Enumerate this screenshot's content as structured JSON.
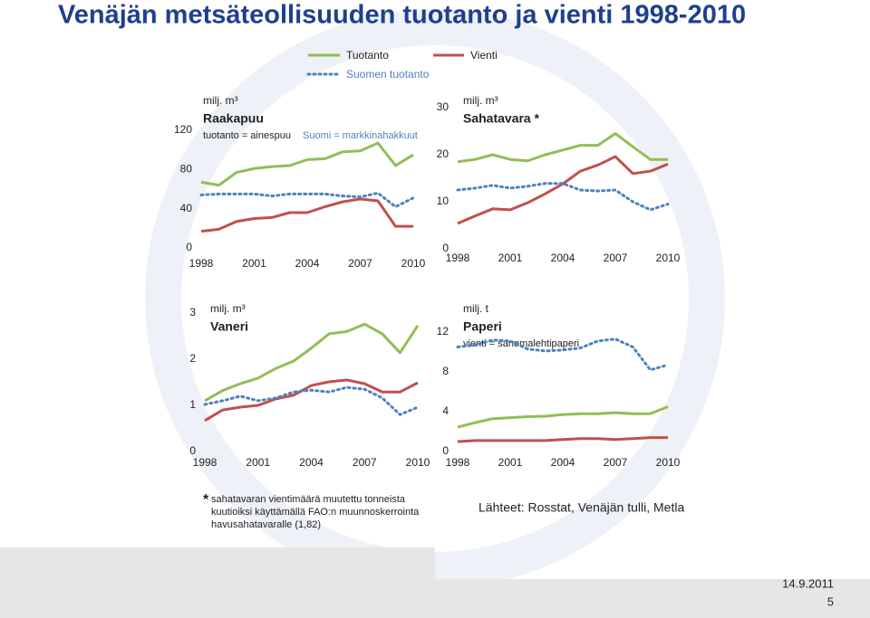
{
  "slide": {
    "title": "Venäjän metsäteollisuuden tuotanto ja vienti 1998-2010",
    "footnote_mark": "*",
    "footnote": [
      "sahatavaran vientimäärä muutettu tonneista",
      "kuutioiksi käyttämällä FAO:n muunnoskerrointa",
      "havusahatavaralle (1,82)"
    ],
    "sources": "Lähteet: Rosstat, Venäjän tulli, Metla",
    "date": "14.9.2011",
    "page": "5"
  },
  "chart_data": [
    {
      "type": "line",
      "title": "Raakapuu",
      "subtitle": "tuotanto = ainespuu",
      "note": "Suomi = markkinahakkuut",
      "unit": "milj. m³",
      "x": [
        1998,
        1999,
        2000,
        2001,
        2002,
        2003,
        2004,
        2005,
        2006,
        2007,
        2008,
        2009,
        2010
      ],
      "xlim": [
        1998,
        2010
      ],
      "xticks": [
        1998,
        2001,
        2004,
        2007,
        2010
      ],
      "ylim": [
        0,
        120
      ],
      "yticks": [
        0,
        40,
        80,
        120
      ],
      "series": [
        {
          "name": "Tuotanto",
          "color": "#93bd55",
          "values": [
            67,
            64,
            77,
            81,
            83,
            84,
            90,
            91,
            98,
            99,
            107,
            84,
            95
          ]
        },
        {
          "name": "Vienti",
          "color": "#c0504d",
          "values": [
            17,
            19,
            27,
            30,
            31,
            36,
            36,
            42,
            47,
            50,
            48,
            22,
            22
          ]
        },
        {
          "name": "Suomen tuotanto",
          "color": "#4f81bd",
          "dashed": true,
          "values": [
            54,
            55,
            55,
            55,
            53,
            55,
            55,
            55,
            53,
            52,
            56,
            42,
            51
          ]
        }
      ]
    },
    {
      "type": "line",
      "title": "Sahatavara *",
      "unit": "milj. m³",
      "x": [
        1998,
        1999,
        2000,
        2001,
        2002,
        2003,
        2004,
        2005,
        2006,
        2007,
        2008,
        2009,
        2010
      ],
      "xlim": [
        1998,
        2010
      ],
      "xticks": [
        1998,
        2001,
        2004,
        2007,
        2010
      ],
      "ylim": [
        0,
        30
      ],
      "yticks": [
        0,
        10,
        20,
        30
      ],
      "series": [
        {
          "color": "#93bd55",
          "values": [
            18.5,
            19,
            20,
            19,
            18.7,
            20,
            21,
            22,
            22,
            24.5,
            21.7,
            19,
            19
          ]
        },
        {
          "color": "#c0504d",
          "values": [
            5.4,
            7,
            8.5,
            8.3,
            9.8,
            11.7,
            13.8,
            16.5,
            17.8,
            19.6,
            16,
            16.5,
            18
          ]
        },
        {
          "color": "#4f81bd",
          "dashed": true,
          "values": [
            12.5,
            12.9,
            13.5,
            12.9,
            13.3,
            13.9,
            13.9,
            12.5,
            12.3,
            12.5,
            10,
            8.3,
            9.5
          ]
        }
      ]
    },
    {
      "type": "line",
      "title": "Vaneri",
      "unit": "milj. m³",
      "x": [
        1998,
        1999,
        2000,
        2001,
        2002,
        2003,
        2004,
        2005,
        2006,
        2007,
        2008,
        2009,
        2010
      ],
      "xlim": [
        1998,
        2010
      ],
      "xticks": [
        1998,
        2001,
        2004,
        2007,
        2010
      ],
      "ylim": [
        0,
        3
      ],
      "yticks": [
        0,
        1,
        2,
        3
      ],
      "series": [
        {
          "color": "#93bd55",
          "values": [
            1.1,
            1.32,
            1.47,
            1.59,
            1.8,
            1.96,
            2.24,
            2.55,
            2.6,
            2.76,
            2.55,
            2.14,
            2.73
          ]
        },
        {
          "color": "#c0504d",
          "values": [
            0.67,
            0.9,
            0.96,
            1.0,
            1.14,
            1.22,
            1.43,
            1.51,
            1.55,
            1.47,
            1.29,
            1.29,
            1.49
          ]
        },
        {
          "color": "#4f81bd",
          "dashed": true,
          "values": [
            1.02,
            1.1,
            1.2,
            1.1,
            1.16,
            1.29,
            1.33,
            1.29,
            1.39,
            1.35,
            1.16,
            0.8,
            0.96
          ]
        }
      ]
    },
    {
      "type": "line",
      "title": "Paperi",
      "subtitle": "vienti = sanomalehtipaperi",
      "unit": "milj. t",
      "x": [
        1998,
        1999,
        2000,
        2001,
        2002,
        2003,
        2004,
        2005,
        2006,
        2007,
        2008,
        2009,
        2010
      ],
      "xlim": [
        1998,
        2010
      ],
      "xticks": [
        1998,
        2001,
        2004,
        2007,
        2010
      ],
      "ylim": [
        0,
        12
      ],
      "yticks": [
        0,
        4,
        8,
        12
      ],
      "series": [
        {
          "color": "#93bd55",
          "values": [
            2.45,
            2.9,
            3.3,
            3.4,
            3.5,
            3.55,
            3.7,
            3.8,
            3.8,
            3.9,
            3.8,
            3.8,
            4.5
          ]
        },
        {
          "color": "#c0504d",
          "values": [
            1.0,
            1.1,
            1.1,
            1.1,
            1.1,
            1.1,
            1.2,
            1.3,
            1.3,
            1.2,
            1.3,
            1.4,
            1.4
          ]
        },
        {
          "color": "#4f81bd",
          "dashed": true,
          "values": [
            10.5,
            10.7,
            11.2,
            11.1,
            10.3,
            10.1,
            10.2,
            10.4,
            11.1,
            11.3,
            10.5,
            8.2,
            8.7
          ]
        }
      ]
    }
  ]
}
